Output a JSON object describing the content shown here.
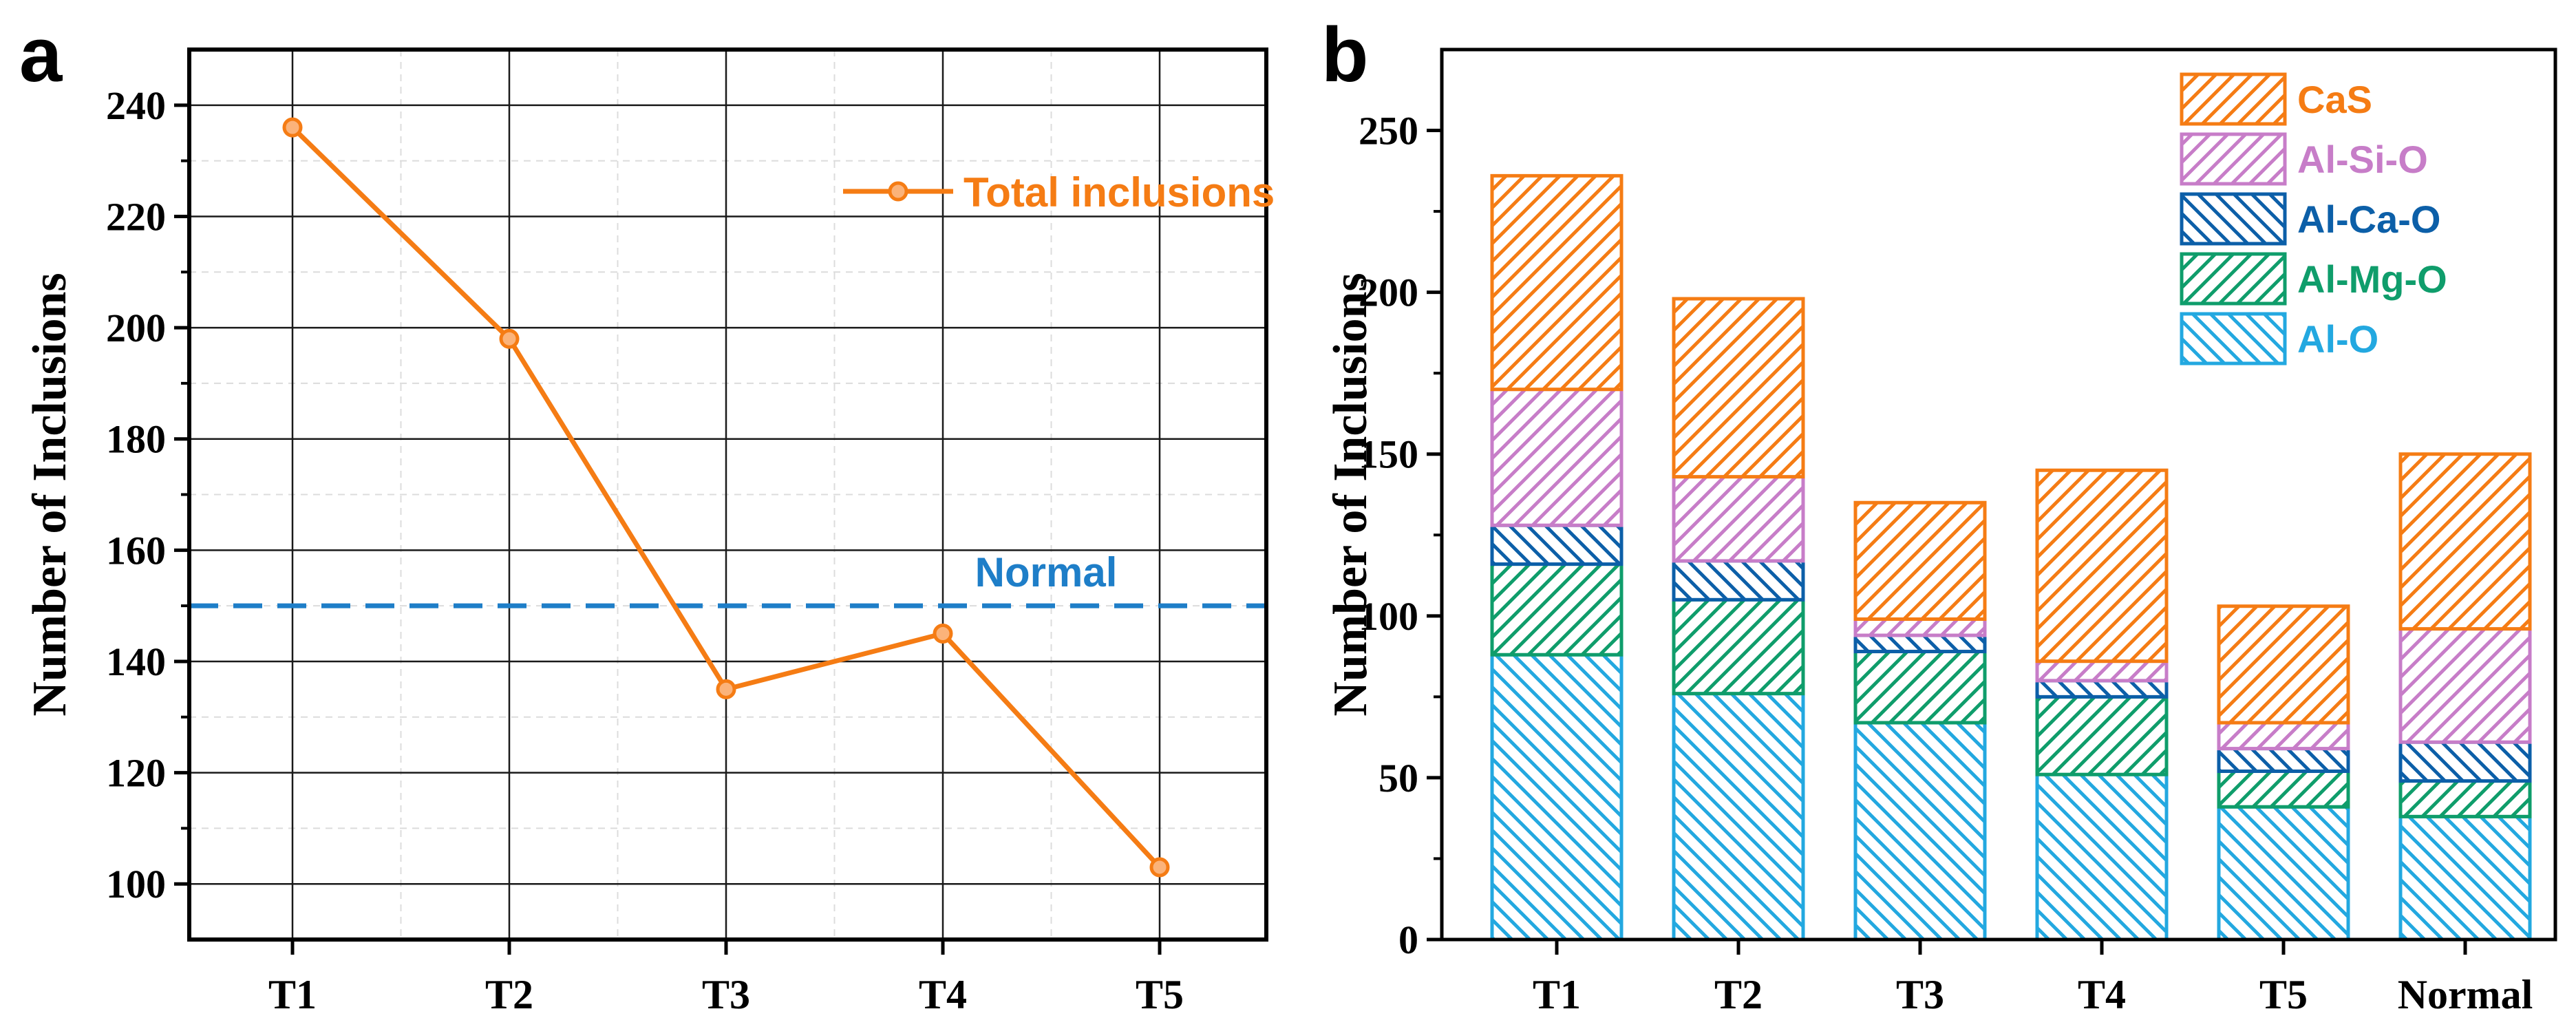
{
  "chart_data": [
    {
      "panel_label": "a",
      "type": "line",
      "categories": [
        "T1",
        "T2",
        "T3",
        "T4",
        "T5"
      ],
      "series": [
        {
          "name": "Total inclusions",
          "values": [
            236,
            198,
            135,
            145,
            103
          ],
          "color": "#f57c14"
        }
      ],
      "reference_line": {
        "label": "Normal",
        "value": 150,
        "color": "#1e7ec8"
      },
      "xlabel": "",
      "ylabel": "Number of Inclusions",
      "ylim": [
        90,
        250
      ],
      "yticks": [
        100,
        120,
        140,
        160,
        180,
        200,
        220,
        240
      ],
      "grid": true,
      "legend_position": "top-right"
    },
    {
      "panel_label": "b",
      "type": "bar",
      "stacked": true,
      "categories": [
        "T1",
        "T2",
        "T3",
        "T4",
        "T5",
        "Normal"
      ],
      "series": [
        {
          "name": "Al-O",
          "values": [
            88,
            76,
            67,
            51,
            41,
            38
          ],
          "color": "#23a8e0"
        },
        {
          "name": "Al-Mg-O",
          "values": [
            28,
            29,
            22,
            24,
            11,
            11
          ],
          "color": "#0f9d6b"
        },
        {
          "name": "Al-Ca-O",
          "values": [
            12,
            12,
            5,
            5,
            7,
            12
          ],
          "color": "#0c5fa8"
        },
        {
          "name": "Al-Si-O",
          "values": [
            42,
            26,
            5,
            6,
            8,
            35
          ],
          "color": "#c77dc8"
        },
        {
          "name": "CaS",
          "values": [
            66,
            55,
            36,
            59,
            36,
            54
          ],
          "color": "#f57c14"
        }
      ],
      "xlabel": "",
      "ylabel": "Number of Inclusions",
      "ylim": [
        0,
        275
      ],
      "yticks": [
        0,
        50,
        100,
        150,
        200,
        250
      ],
      "grid": false,
      "legend_position": "top-right",
      "legend_order": [
        "CaS",
        "Al-Si-O",
        "Al-Ca-O",
        "Al-Mg-O",
        "Al-O"
      ]
    }
  ]
}
